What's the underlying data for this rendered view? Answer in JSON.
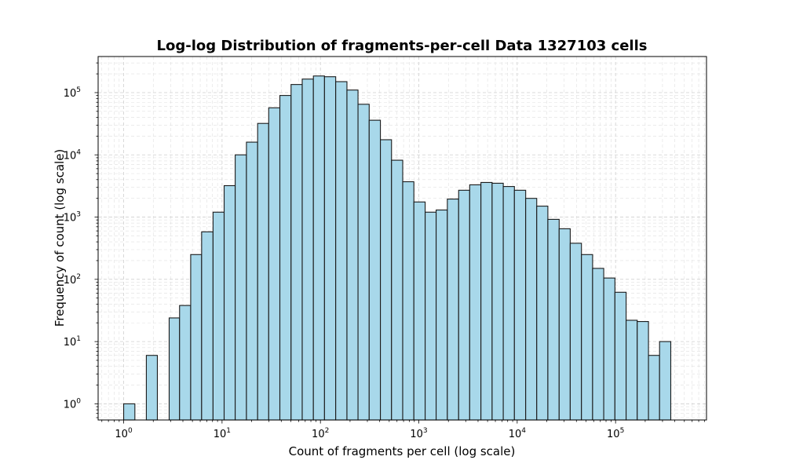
{
  "chart_data": {
    "type": "bar",
    "title": "Log-log Distribution of fragments-per-cell Data 1327103 cells",
    "xlabel": "Count of fragments per cell (log scale)",
    "ylabel": "Frequency of count (log scale)",
    "xscale": "log",
    "yscale": "log",
    "xlim": [
      0.55,
      840000
    ],
    "ylim": [
      0.55,
      380000
    ],
    "grid": true,
    "bar_color": "#a8d8ea",
    "edge_color": "#1a1a1a",
    "x_ticks": [
      {
        "base": "10",
        "exp": "0",
        "value": 1
      },
      {
        "base": "10",
        "exp": "1",
        "value": 10
      },
      {
        "base": "10",
        "exp": "2",
        "value": 100
      },
      {
        "base": "10",
        "exp": "3",
        "value": 1000
      },
      {
        "base": "10",
        "exp": "4",
        "value": 10000
      },
      {
        "base": "10",
        "exp": "5",
        "value": 100000
      }
    ],
    "y_ticks": [
      {
        "base": "10",
        "exp": "0",
        "value": 1
      },
      {
        "base": "10",
        "exp": "1",
        "value": 10
      },
      {
        "base": "10",
        "exp": "2",
        "value": 100
      },
      {
        "base": "10",
        "exp": "3",
        "value": 1000
      },
      {
        "base": "10",
        "exp": "4",
        "value": 10000
      },
      {
        "base": "10",
        "exp": "5",
        "value": 100000
      }
    ],
    "bin_edges": [
      1,
      1.3,
      1.7,
      2.2,
      2.9,
      3.7,
      4.8,
      6.2,
      8.1,
      10.5,
      13.6,
      17.7,
      23,
      29.8,
      38.7,
      50.3,
      65.3,
      84.8,
      110,
      143,
      186,
      241,
      313,
      407,
      528,
      686,
      891,
      1160,
      1500,
      1950,
      2540,
      3290,
      4280,
      5560,
      7220,
      9370,
      12200,
      15800,
      20500,
      26700,
      34600,
      45000,
      58400,
      75800,
      98500,
      128000,
      166000,
      216000,
      280000,
      364000
    ],
    "counts": [
      1,
      0,
      6,
      0,
      24,
      38,
      250,
      580,
      1200,
      3200,
      10000,
      16000,
      32000,
      57000,
      90000,
      135000,
      165000,
      185000,
      180000,
      150000,
      110000,
      65000,
      36000,
      17500,
      8200,
      3700,
      1750,
      1200,
      1300,
      1950,
      2700,
      3300,
      3600,
      3500,
      3100,
      2700,
      2000,
      1500,
      920,
      650,
      380,
      250,
      150,
      105,
      62,
      22,
      21,
      6,
      10
    ]
  }
}
